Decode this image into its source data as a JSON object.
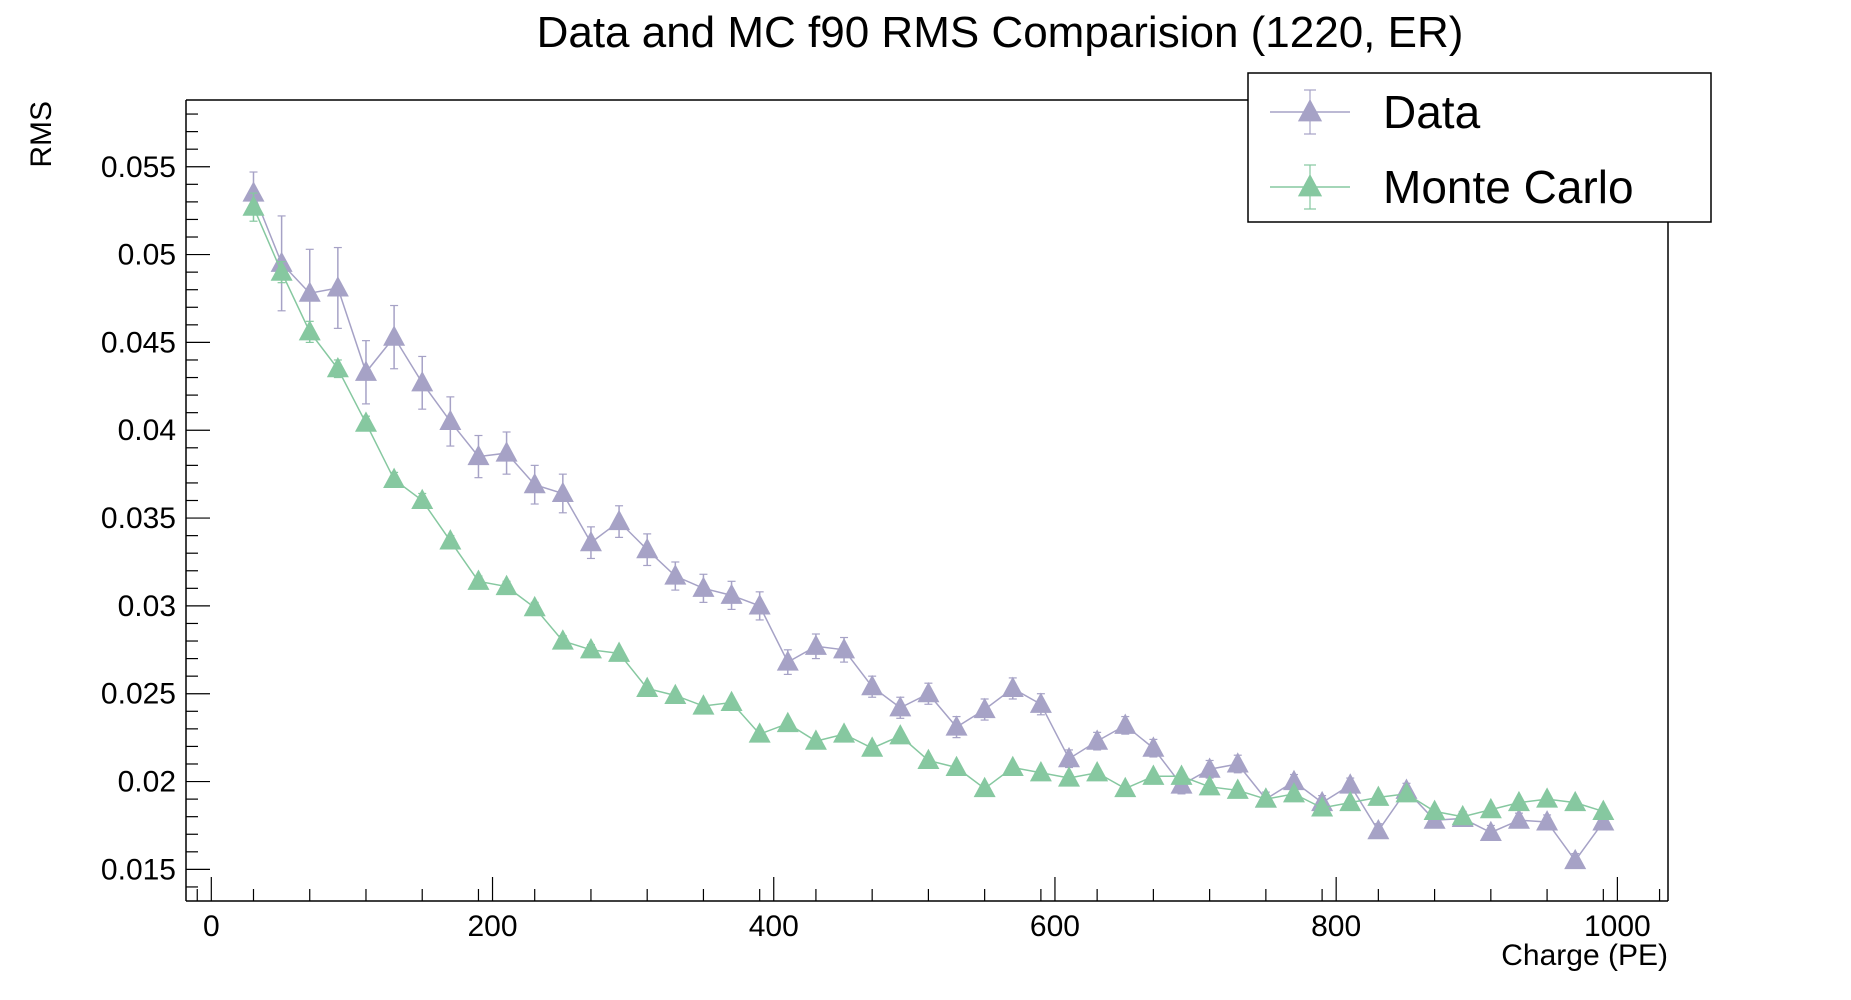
{
  "chart_data": {
    "type": "line",
    "title": "Data and MC f90 RMS Comparision (1220, ER)",
    "xlabel": "Charge (PE)",
    "ylabel": "RMS",
    "xlim": [
      -18,
      1036
    ],
    "ylim": [
      0.0132,
      0.0588
    ],
    "x_ticks": [
      0,
      200,
      400,
      600,
      800,
      1000
    ],
    "x_tick_labels": [
      "0",
      "200",
      "400",
      "600",
      "800",
      "1000"
    ],
    "y_ticks": [
      0.015,
      0.02,
      0.025,
      0.03,
      0.035,
      0.04,
      0.045,
      0.05,
      0.055
    ],
    "y_tick_labels": [
      "0.015",
      "0.02",
      "0.025",
      "0.03",
      "0.035",
      "0.04",
      "0.045",
      "0.05",
      "0.055"
    ],
    "legend_position": "top-right",
    "grid": false,
    "series": [
      {
        "name": "Data",
        "color": "#a6a2c6",
        "marker": "triangle",
        "x": [
          30,
          50,
          70,
          90,
          110,
          130,
          150,
          170,
          190,
          210,
          230,
          250,
          270,
          290,
          310,
          330,
          350,
          370,
          390,
          410,
          430,
          450,
          470,
          490,
          510,
          530,
          550,
          570,
          590,
          610,
          630,
          650,
          670,
          690,
          710,
          730,
          750,
          770,
          790,
          810,
          830,
          850,
          870,
          890,
          910,
          930,
          950,
          970,
          990
        ],
        "y": [
          0.0535,
          0.0495,
          0.0478,
          0.0481,
          0.0433,
          0.0453,
          0.0427,
          0.0405,
          0.0385,
          0.0387,
          0.0369,
          0.0364,
          0.0336,
          0.0348,
          0.0332,
          0.0317,
          0.031,
          0.0306,
          0.03,
          0.0268,
          0.0277,
          0.0275,
          0.0254,
          0.0242,
          0.025,
          0.0231,
          0.0241,
          0.0253,
          0.0244,
          0.0213,
          0.0223,
          0.0232,
          0.0219,
          0.0198,
          0.0207,
          0.021,
          0.019,
          0.02,
          0.0188,
          0.0198,
          0.0172,
          0.0195,
          0.0178,
          0.0179,
          0.0171,
          0.0178,
          0.0177,
          0.0155,
          0.0177
        ],
        "error": [
          0.0012,
          0.0027,
          0.0025,
          0.0023,
          0.0018,
          0.0018,
          0.0015,
          0.0014,
          0.0012,
          0.0012,
          0.0011,
          0.0011,
          0.0009,
          0.0009,
          0.0009,
          0.0008,
          0.0008,
          0.0008,
          0.0008,
          0.0007,
          0.0007,
          0.0007,
          0.0006,
          0.0006,
          0.0006,
          0.0006,
          0.0006,
          0.0006,
          0.0006,
          0.0005,
          0.0005,
          0.0005,
          0.0005,
          0.0005,
          0.0005,
          0.0005,
          0.0004,
          0.0004,
          0.0004,
          0.0004,
          0.0004,
          0.0004,
          0.0004,
          0.0004,
          0.0004,
          0.0004,
          0.0004,
          0.0004,
          0.0004
        ]
      },
      {
        "name": "Monte Carlo",
        "color": "#86c8a0",
        "marker": "triangle",
        "x": [
          30,
          50,
          70,
          90,
          110,
          130,
          150,
          170,
          190,
          210,
          230,
          250,
          270,
          290,
          310,
          330,
          350,
          370,
          390,
          410,
          430,
          450,
          470,
          490,
          510,
          530,
          550,
          570,
          590,
          610,
          630,
          650,
          670,
          690,
          710,
          730,
          750,
          770,
          790,
          810,
          830,
          850,
          870,
          890,
          910,
          930,
          950,
          970,
          990
        ],
        "y": [
          0.0527,
          0.049,
          0.0456,
          0.0435,
          0.0404,
          0.0372,
          0.036,
          0.0337,
          0.0314,
          0.0311,
          0.0299,
          0.028,
          0.0275,
          0.0273,
          0.0253,
          0.0249,
          0.0243,
          0.0245,
          0.0227,
          0.0233,
          0.0223,
          0.0227,
          0.0219,
          0.0226,
          0.0212,
          0.0208,
          0.0196,
          0.0208,
          0.0205,
          0.0202,
          0.0205,
          0.0196,
          0.0203,
          0.0203,
          0.0197,
          0.0195,
          0.019,
          0.0193,
          0.0185,
          0.0188,
          0.0191,
          0.0193,
          0.0183,
          0.018,
          0.0184,
          0.0188,
          0.019,
          0.0188,
          0.0183
        ],
        "error": [
          0.0008,
          0.0006,
          0.0006,
          0.0005,
          0.0004,
          0.0004,
          0.0004,
          0.0003,
          0.0003,
          0.0003,
          0.0003,
          0.0003,
          0.0003,
          0.0002,
          0.0002,
          0.0002,
          0.0002,
          0.0002,
          0.0002,
          0.0002,
          0.0002,
          0.0002,
          0.0002,
          0.0002,
          0.0002,
          0.0002,
          0.0002,
          0.0002,
          0.0002,
          0.0002,
          0.0002,
          0.0002,
          0.0002,
          0.0002,
          0.0002,
          0.0002,
          0.0002,
          0.0002,
          0.0002,
          0.0002,
          0.0002,
          0.0002,
          0.0002,
          0.0002,
          0.0002,
          0.0002,
          0.0002,
          0.0002,
          0.0002
        ]
      }
    ]
  }
}
